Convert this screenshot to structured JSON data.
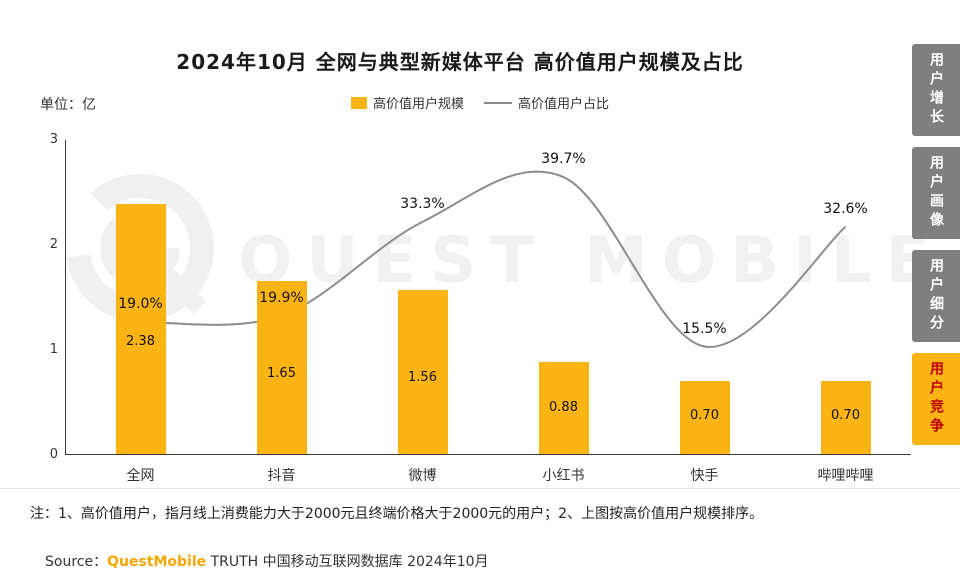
{
  "title": "2024年10月 全网与典型新媒体平台 高价值用户规模及占比",
  "unit_label": "单位：亿",
  "legend": {
    "bar_label": "高价值用户规模",
    "line_label": "高价值用户占比"
  },
  "chart_data": {
    "type": "bar",
    "combo": "bar+line",
    "title": "2024年10月 全网与典型新媒体平台 高价值用户规模及占比",
    "categories": [
      "全网",
      "抖音",
      "微博",
      "小红书",
      "快手",
      "哔哩哔哩"
    ],
    "series": [
      {
        "name": "高价值用户规模",
        "type": "bar",
        "unit": "亿",
        "values": [
          2.38,
          1.65,
          1.56,
          0.88,
          0.7,
          0.7
        ]
      },
      {
        "name": "高价值用户占比",
        "type": "line",
        "unit": "%",
        "values": [
          19.0,
          19.9,
          33.3,
          39.7,
          15.5,
          32.6
        ]
      }
    ],
    "ylabel": "单位：亿",
    "ylim": [
      0,
      3
    ],
    "yticks": [
      0,
      1,
      2,
      3
    ],
    "line_ylim": [
      0,
      45
    ],
    "grid": false,
    "legend_position": "top"
  },
  "watermark": {
    "text": "QUEST MOBILE"
  },
  "note": "注：1、高价值用户，指月线上消费能力大于2000元且终端价格大于2000元的用户；2、上图按高价值用户规模排序。",
  "source": {
    "prefix": "Source：",
    "brand": "QuestMobile",
    "rest": " TRUTH 中国移动互联网数据库 2024年10月"
  },
  "sidebar": {
    "tabs": [
      {
        "label": "用户增长",
        "active": false
      },
      {
        "label": "用户画像",
        "active": false
      },
      {
        "label": "用户细分",
        "active": false
      },
      {
        "label": "用户竞争",
        "active": true
      }
    ]
  },
  "colors": {
    "bar": "#FCB414",
    "line": "#8C8C8C",
    "tab_inactive_bg": "#7F7F7F",
    "tab_active_bg": "#FCB414",
    "tab_active_text": "#C00000",
    "brand": "#F7A600"
  }
}
